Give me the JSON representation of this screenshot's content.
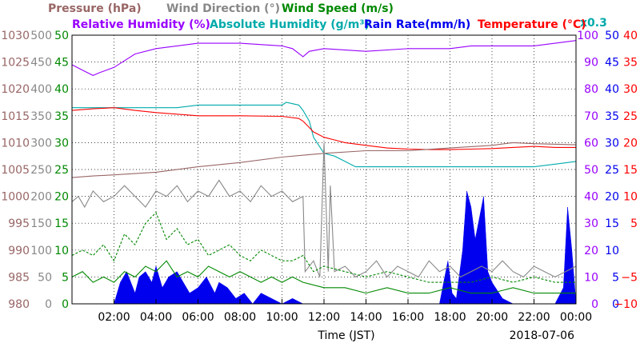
{
  "chart_data": {
    "type": "line",
    "date": "2018-07-06",
    "xlabel": "Time (JST)",
    "x_ticks": [
      "02:00",
      "04:00",
      "06:00",
      "08:00",
      "10:00",
      "12:00",
      "14:00",
      "16:00",
      "18:00",
      "20:00",
      "22:00",
      "00:00"
    ],
    "x_range_hours": [
      0,
      24
    ],
    "grid": true,
    "legend": [
      {
        "text": "Pressure (hPa)",
        "color": "#996666"
      },
      {
        "text": "Wind Direction (°)",
        "color": "#888888"
      },
      {
        "text": "Wind Speed (m/s)",
        "color": "#008800"
      },
      {
        "text": "Relative Humidity (%)",
        "color": "#9900ff"
      },
      {
        "text": "Absolute Humidity (g/m³)",
        "color": "#00aaaa"
      },
      {
        "text": "x0.3",
        "color": "#00aaaa"
      },
      {
        "text": "Rain Rate(mm/h)",
        "color": "#0000ee"
      },
      {
        "text": "Temperature (°C)",
        "color": "#ff0000"
      }
    ],
    "axes": {
      "pressure": {
        "color": "#996666",
        "range": [
          980,
          1030
        ],
        "ticks": [
          "1030",
          "1025",
          "1020",
          "1015",
          "1010",
          "1005",
          "1000",
          "995",
          "990",
          "985",
          "980"
        ]
      },
      "wind_direction": {
        "color": "#888888",
        "range": [
          0,
          500
        ],
        "ticks": [
          "500",
          "450",
          "400",
          "350",
          "300",
          "250",
          "200",
          "150",
          "100",
          "50",
          "0"
        ]
      },
      "wind_speed": {
        "color": "#008800",
        "range": [
          0,
          50
        ],
        "ticks": [
          "50",
          "45",
          "40",
          "35",
          "30",
          "25",
          "20",
          "15",
          "10",
          "5",
          "0"
        ]
      },
      "relative_humidity": {
        "color": "#9900ff",
        "range": [
          0,
          100
        ],
        "ticks": [
          "100",
          "90",
          "80",
          "70",
          "60",
          "50",
          "40",
          "30",
          "20",
          "10",
          "0"
        ]
      },
      "rain_rate": {
        "color": "#0000ee",
        "range": [
          0,
          50
        ],
        "ticks": [
          "50",
          "45",
          "40",
          "35",
          "30",
          "25",
          "20",
          "15",
          "10",
          "5",
          "0"
        ]
      },
      "temperature": {
        "color": "#ff0000",
        "range": [
          -10,
          40
        ],
        "ticks": [
          "40",
          "35",
          "30",
          "25",
          "20",
          "15",
          "10",
          "5",
          "−5",
          "−10"
        ]
      }
    },
    "series": [
      {
        "name": "Relative Humidity (%)",
        "axis": "relative_humidity",
        "color": "#9900ff",
        "x": [
          0,
          0.5,
          1,
          1.3,
          2,
          3,
          4,
          5,
          6,
          8,
          10,
          10.5,
          11,
          11.3,
          12,
          14,
          16,
          18,
          19,
          20,
          21,
          22,
          23,
          24
        ],
        "y": [
          89,
          87,
          85,
          86,
          88,
          93,
          95,
          96,
          97,
          97,
          96,
          95,
          92,
          94,
          95,
          94,
          95,
          95,
          96,
          96,
          96,
          96,
          97,
          98
        ]
      },
      {
        "name": "Absolute Humidity (g/m³) x0.3",
        "axis": "relative_humidity",
        "color": "#00aaaa",
        "x": [
          0,
          1,
          2,
          3,
          4,
          5,
          6,
          8,
          10,
          10.2,
          10.8,
          11,
          11.3,
          11.5,
          12,
          12.5,
          13,
          13.5,
          14,
          15,
          16,
          18,
          20,
          22,
          23,
          24
        ],
        "y": [
          73,
          73,
          73,
          73,
          73,
          73,
          74,
          74,
          74,
          75,
          74,
          72,
          68,
          62,
          56,
          55,
          53,
          51,
          51,
          51,
          51,
          51,
          51,
          51,
          52,
          53
        ]
      },
      {
        "name": "Temperature (°C)",
        "axis": "temperature",
        "color": "#ff0000",
        "x": [
          0,
          1,
          2,
          3,
          4,
          5,
          6,
          8,
          10,
          10.8,
          11,
          11.5,
          12,
          12.5,
          13,
          14,
          15,
          16,
          17,
          18,
          19,
          20,
          21,
          22,
          23,
          24
        ],
        "y": [
          26,
          26.3,
          26.5,
          26,
          25.6,
          25.3,
          25,
          25,
          24.9,
          24.5,
          24,
          22,
          21,
          20.5,
          20,
          19.5,
          19,
          18.8,
          18.7,
          18.7,
          18.8,
          18.9,
          19.1,
          19.3,
          19.1,
          19.1
        ]
      },
      {
        "name": "Pressure (hPa)",
        "axis": "pressure",
        "color": "#996666",
        "x": [
          0,
          1,
          2,
          4,
          6,
          8,
          10,
          12,
          14,
          16,
          18,
          20,
          21,
          22,
          24
        ],
        "y": [
          1003.5,
          1003.8,
          1004,
          1004.5,
          1005.5,
          1006.3,
          1007.3,
          1008,
          1008.5,
          1008.5,
          1009,
          1009.5,
          1010,
          1009.8,
          1009.6
        ]
      },
      {
        "name": "Wind Direction (°)",
        "axis": "wind_direction",
        "color": "#888888",
        "x": [
          0,
          0.3,
          0.6,
          1,
          1.5,
          2,
          2.5,
          3,
          3.5,
          4,
          4.5,
          5,
          5.5,
          6,
          6.5,
          7,
          7.5,
          8,
          8.5,
          9,
          9.5,
          10,
          10.5,
          11,
          11.1,
          11.5,
          11.8,
          12,
          12.2,
          12.3,
          12.5,
          13,
          13.5,
          14,
          14.5,
          15,
          15.5,
          16,
          16.5,
          17,
          17.5,
          18,
          18.5,
          19,
          19.5,
          20,
          20.5,
          21,
          21.5,
          22,
          22.5,
          23,
          23.5,
          24
        ],
        "y": [
          190,
          200,
          180,
          210,
          190,
          200,
          220,
          200,
          180,
          210,
          200,
          220,
          190,
          210,
          200,
          230,
          200,
          210,
          190,
          220,
          200,
          210,
          190,
          200,
          60,
          80,
          50,
          300,
          60,
          220,
          60,
          70,
          50,
          60,
          80,
          50,
          70,
          60,
          50,
          80,
          60,
          70,
          50,
          60,
          70,
          60,
          80,
          60,
          50,
          70,
          60,
          50,
          60,
          70
        ]
      },
      {
        "name": "Wind Speed (m/s) max",
        "axis": "wind_speed",
        "color": "#008800",
        "dashed": true,
        "x": [
          0,
          0.5,
          1,
          1.5,
          2,
          2.5,
          3,
          3.5,
          4,
          4.5,
          5,
          5.5,
          6,
          6.5,
          7,
          7.5,
          8,
          8.5,
          9,
          9.5,
          10,
          10.5,
          11,
          11.5,
          12,
          13,
          14,
          15,
          16,
          17,
          18,
          19,
          20,
          21,
          22,
          23,
          24
        ],
        "y": [
          9,
          10,
          9,
          11,
          8,
          13,
          11,
          15,
          17,
          12,
          14,
          11,
          12,
          9,
          10,
          11,
          9,
          8,
          10,
          9,
          8,
          8,
          9,
          6,
          7,
          6,
          5,
          6,
          5,
          4,
          4,
          4,
          5,
          4,
          5,
          4,
          4
        ]
      },
      {
        "name": "Wind Speed (m/s) mean",
        "axis": "wind_speed",
        "color": "#008800",
        "x": [
          0,
          0.5,
          1,
          1.5,
          2,
          2.5,
          3,
          3.5,
          4,
          4.5,
          5,
          5.5,
          6,
          6.5,
          7,
          7.5,
          8,
          8.5,
          9,
          9.5,
          10,
          10.5,
          11,
          12,
          13,
          14,
          15,
          16,
          17,
          18,
          19,
          20,
          21,
          22,
          23,
          24
        ],
        "y": [
          5,
          6,
          4,
          5,
          4,
          6,
          5,
          7,
          6,
          8,
          5,
          6,
          5,
          7,
          6,
          5,
          6,
          5,
          4,
          5,
          4,
          5,
          4,
          3,
          3,
          2,
          3,
          2,
          2,
          3,
          2,
          2,
          3,
          2,
          2,
          2
        ]
      },
      {
        "name": "Rain Rate(mm/h)",
        "axis": "rain_rate",
        "color": "#0000ee",
        "fill": true,
        "x": [
          0,
          0.5,
          1,
          1.2,
          1.5,
          1.8,
          2,
          2.3,
          2.6,
          3,
          3.2,
          3.5,
          3.8,
          4,
          4.3,
          4.6,
          5,
          5.3,
          5.6,
          6,
          6.4,
          6.8,
          7,
          7.4,
          7.8,
          8.2,
          8.6,
          9,
          9.5,
          10,
          10.5,
          11,
          11.5,
          12,
          14,
          16,
          17.5,
          17.7,
          17.9,
          18.1,
          18.3,
          18.6,
          18.8,
          19,
          19.2,
          19.4,
          19.6,
          19.8,
          20,
          20.5,
          21,
          22,
          23,
          23.4,
          23.6,
          23.8,
          24
        ],
        "y": [
          0,
          0,
          0,
          0,
          0,
          0,
          0,
          4,
          6,
          2,
          5,
          6,
          4,
          7,
          3,
          5,
          6,
          4,
          2,
          3,
          5,
          2,
          4,
          3,
          1,
          2,
          0,
          2,
          1,
          0,
          1,
          0,
          0,
          0,
          0,
          0,
          0,
          4,
          8,
          2,
          1,
          10,
          21,
          18,
          12,
          16,
          20,
          6,
          4,
          1,
          0,
          0,
          0,
          3,
          18,
          10,
          0
        ]
      }
    ]
  }
}
